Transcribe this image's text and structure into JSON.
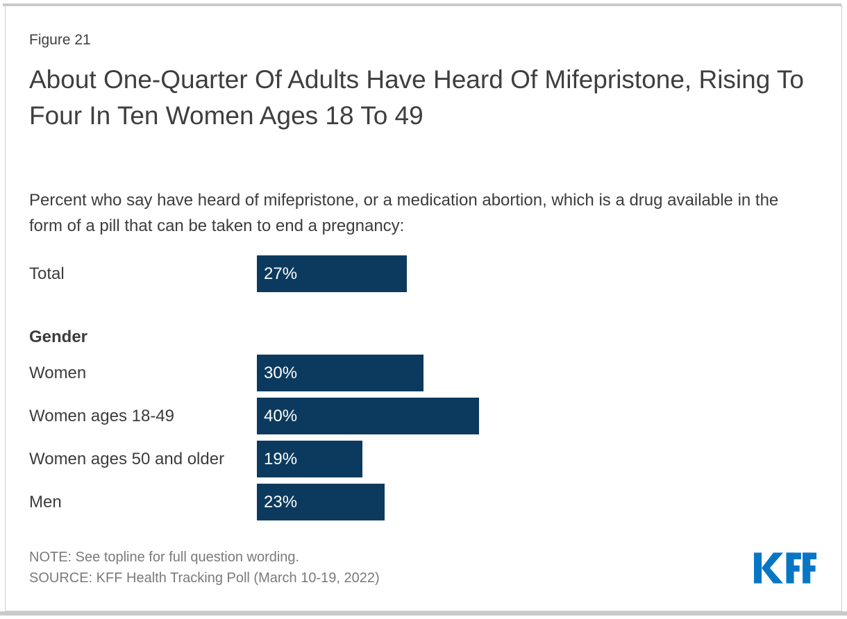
{
  "figure_label": "Figure 21",
  "title": "About One-Quarter Of Adults Have Heard Of Mifepristone, Rising To Four In Ten Women Ages 18 To 49",
  "subtitle": "Percent who say have heard of mifepristone, or a medication abortion, which is a drug available in the form of a pill that can be taken to end a pregnancy:",
  "chart_data": {
    "type": "bar",
    "orientation": "horizontal",
    "unit": "%",
    "xlim": [
      0,
      100
    ],
    "grid": false,
    "legend": "none",
    "bar_color": "#0c3a5e",
    "value_label_color": "#ffffff",
    "categories": [
      "Total",
      "Women",
      "Women ages 18-49",
      "Women ages 50 and older",
      "Men"
    ],
    "values": [
      27,
      30,
      40,
      19,
      23
    ],
    "groups": [
      {
        "header": "",
        "rows": [
          {
            "label": "Total",
            "value": 27,
            "display": "27%"
          }
        ]
      },
      {
        "header": "Gender",
        "rows": [
          {
            "label": "Women",
            "value": 30,
            "display": "30%"
          },
          {
            "label": "Women ages 18-49",
            "value": 40,
            "display": "40%"
          },
          {
            "label": "Women ages 50 and older",
            "value": 19,
            "display": "19%"
          },
          {
            "label": "Men",
            "value": 23,
            "display": "23%"
          }
        ]
      }
    ]
  },
  "footer": {
    "note": "NOTE: See topline for full question wording.",
    "source": "SOURCE: KFF Health Tracking Poll (March 10-19, 2022)",
    "logo_text": "KFF",
    "logo_color": "#0876c4"
  },
  "frame": {
    "border_color": "#cccccc",
    "strip_color": "#c9c9c9"
  }
}
